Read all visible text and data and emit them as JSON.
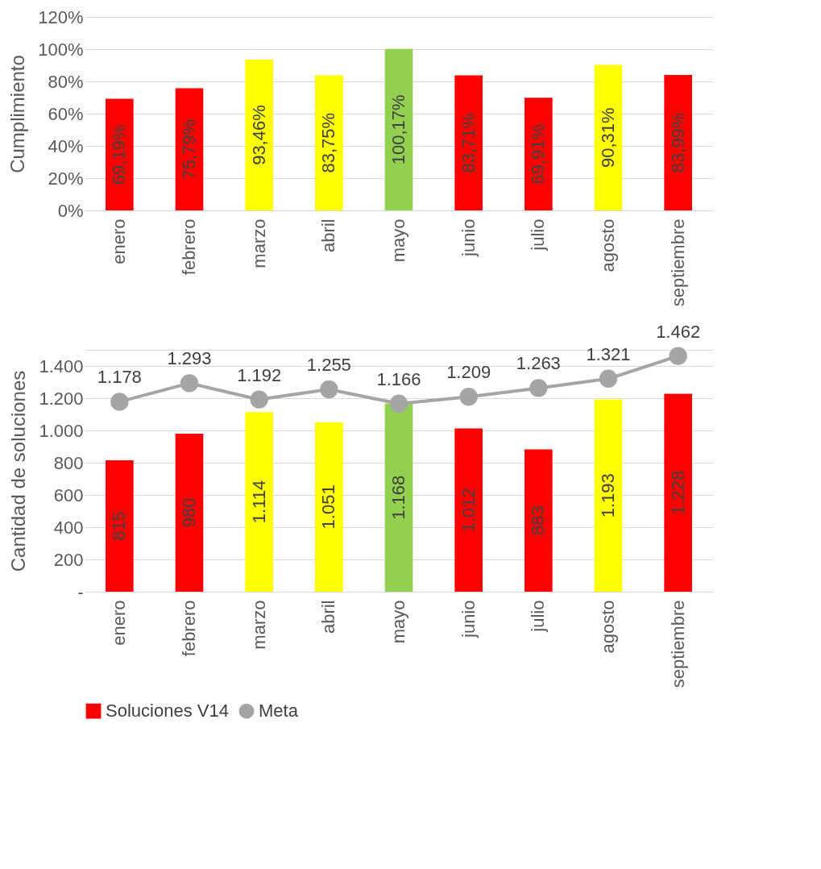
{
  "chart_data": [
    {
      "type": "bar",
      "ylabel": "Cumplimiento",
      "categories": [
        "enero",
        "febrero",
        "marzo",
        "abril",
        "mayo",
        "junio",
        "julio",
        "agosto",
        "septiembre"
      ],
      "series": [
        {
          "values": [
            69.19,
            75.79,
            93.46,
            83.75,
            100.17,
            83.71,
            69.91,
            90.31,
            83.99
          ],
          "colors": [
            "#ff0000",
            "#ff0000",
            "#ffff00",
            "#ffff00",
            "#92d050",
            "#ff0000",
            "#ff0000",
            "#ffff00",
            "#ff0000"
          ],
          "value_labels": [
            "69,19%",
            "75,79%",
            "93,46%",
            "83,75%",
            "100,17%",
            "83,71%",
            "69,91%",
            "90,31%",
            "83,99%"
          ]
        }
      ],
      "ylim": [
        0,
        120
      ],
      "yticks": [
        {
          "value": 0,
          "label": "0%"
        },
        {
          "value": 20,
          "label": "20%"
        },
        {
          "value": 40,
          "label": "40%"
        },
        {
          "value": 60,
          "label": "60%"
        },
        {
          "value": 80,
          "label": "80%"
        },
        {
          "value": 100,
          "label": "100%"
        },
        {
          "value": 120,
          "label": "120%"
        }
      ],
      "grid": "y",
      "legend": false
    },
    {
      "type": "bar",
      "ylabel": "Cantidad de soluciones",
      "categories": [
        "enero",
        "febrero",
        "marzo",
        "abril",
        "mayo",
        "junio",
        "julio",
        "agosto",
        "septiembre"
      ],
      "series": [
        {
          "name": "Soluciones V14",
          "color": "#ff0000",
          "values": [
            815,
            980,
            1114,
            1051,
            1168,
            1012,
            883,
            1193,
            1228
          ],
          "colors": [
            "#ff0000",
            "#ff0000",
            "#ffff00",
            "#ffff00",
            "#92d050",
            "#ff0000",
            "#ff0000",
            "#ffff00",
            "#ff0000"
          ],
          "value_labels": [
            "815",
            "980",
            "1.114",
            "1.051",
            "1.168",
            "1.012",
            "883",
            "1.193",
            "1.228"
          ]
        },
        {
          "name": "Meta",
          "type": "line",
          "color": "#a5a5a5",
          "marker": "circle",
          "values": [
            1178,
            1293,
            1192,
            1255,
            1166,
            1209,
            1263,
            1321,
            1462
          ],
          "value_labels": [
            "1.178",
            "1.293",
            "1.192",
            "1.255",
            "1.166",
            "1.209",
            "1.263",
            "1.321",
            "1.462"
          ]
        }
      ],
      "ylim": [
        0,
        1500
      ],
      "yticks": [
        {
          "value": 0,
          "label": "-"
        },
        {
          "value": 200,
          "label": "200"
        },
        {
          "value": 400,
          "label": "400"
        },
        {
          "value": 600,
          "label": "600"
        },
        {
          "value": 800,
          "label": "800"
        },
        {
          "value": 1000,
          "label": "1.000"
        },
        {
          "value": 1200,
          "label": "1.200"
        },
        {
          "value": 1400,
          "label": "1.400"
        },
        {
          "value": 1500,
          "label": null
        }
      ],
      "grid": "y",
      "legend": "bottom"
    }
  ]
}
